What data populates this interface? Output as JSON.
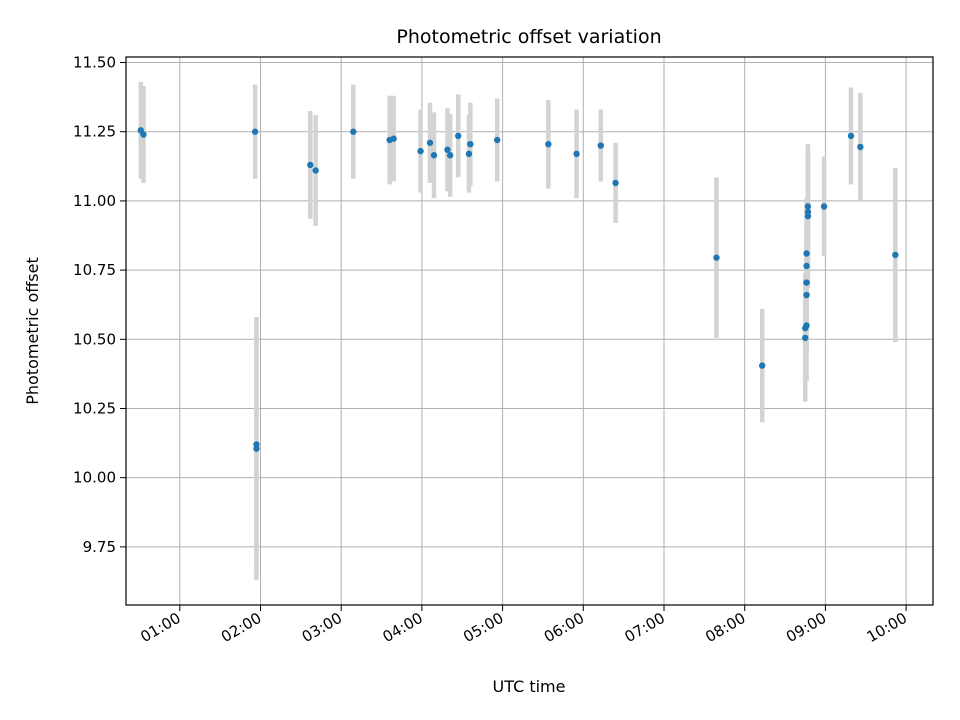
{
  "chart_data": {
    "type": "scatter",
    "title": "Photometric offset variation",
    "xlabel": "UTC time",
    "ylabel": "Photometric offset",
    "x_axis": "time",
    "xlim": [
      "00:20",
      "10:20"
    ],
    "ylim": [
      9.54,
      11.52
    ],
    "xticks": [
      "01:00",
      "02:00",
      "03:00",
      "04:00",
      "05:00",
      "06:00",
      "07:00",
      "08:00",
      "09:00",
      "10:00"
    ],
    "yticks": [
      9.75,
      10.0,
      10.25,
      10.5,
      10.75,
      11.0,
      11.25,
      11.5
    ],
    "grid": true,
    "marker_color": "#1f77b4",
    "errorbar_color": "#d3d3d3",
    "points": [
      {
        "x": "00:31",
        "y": 11.255,
        "err": 0.175
      },
      {
        "x": "00:33",
        "y": 11.24,
        "err": 0.175
      },
      {
        "x": "01:56",
        "y": 11.25,
        "err": 0.17
      },
      {
        "x": "01:57",
        "y": 10.105,
        "err": 0.475
      },
      {
        "x": "01:57",
        "y": 10.12,
        "err": 0.46
      },
      {
        "x": "02:37",
        "y": 11.13,
        "err": 0.195
      },
      {
        "x": "02:41",
        "y": 11.11,
        "err": 0.2
      },
      {
        "x": "03:09",
        "y": 11.25,
        "err": 0.17
      },
      {
        "x": "03:36",
        "y": 11.22,
        "err": 0.16
      },
      {
        "x": "03:39",
        "y": 11.225,
        "err": 0.155
      },
      {
        "x": "03:59",
        "y": 11.18,
        "err": 0.15
      },
      {
        "x": "04:06",
        "y": 11.21,
        "err": 0.145
      },
      {
        "x": "04:09",
        "y": 11.165,
        "err": 0.155
      },
      {
        "x": "04:19",
        "y": 11.185,
        "err": 0.15
      },
      {
        "x": "04:21",
        "y": 11.165,
        "err": 0.15
      },
      {
        "x": "04:27",
        "y": 11.235,
        "err": 0.15
      },
      {
        "x": "04:35",
        "y": 11.17,
        "err": 0.14
      },
      {
        "x": "04:36",
        "y": 11.205,
        "err": 0.15
      },
      {
        "x": "04:56",
        "y": 11.22,
        "err": 0.15
      },
      {
        "x": "05:34",
        "y": 11.205,
        "err": 0.16
      },
      {
        "x": "05:55",
        "y": 11.17,
        "err": 0.16
      },
      {
        "x": "06:13",
        "y": 11.2,
        "err": 0.13
      },
      {
        "x": "06:24",
        "y": 11.065,
        "err": 0.145
      },
      {
        "x": "07:39",
        "y": 10.795,
        "err": 0.29
      },
      {
        "x": "08:13",
        "y": 10.405,
        "err": 0.205
      },
      {
        "x": "08:45",
        "y": 10.505,
        "err": 0.23
      },
      {
        "x": "08:45",
        "y": 10.54,
        "err": 0.2
      },
      {
        "x": "08:46",
        "y": 10.55,
        "err": 0.2
      },
      {
        "x": "08:46",
        "y": 10.66,
        "err": 0.2
      },
      {
        "x": "08:46",
        "y": 10.705,
        "err": 0.2
      },
      {
        "x": "08:46",
        "y": 10.765,
        "err": 0.2
      },
      {
        "x": "08:46",
        "y": 10.81,
        "err": 0.2
      },
      {
        "x": "08:47",
        "y": 10.945,
        "err": 0.26
      },
      {
        "x": "08:47",
        "y": 10.96,
        "err": 0.2
      },
      {
        "x": "08:47",
        "y": 10.98,
        "err": 0.2
      },
      {
        "x": "08:59",
        "y": 10.98,
        "err": 0.18
      },
      {
        "x": "09:19",
        "y": 11.235,
        "err": 0.175
      },
      {
        "x": "09:26",
        "y": 11.195,
        "err": 0.195
      },
      {
        "x": "09:52",
        "y": 10.805,
        "err": 0.315
      }
    ]
  }
}
